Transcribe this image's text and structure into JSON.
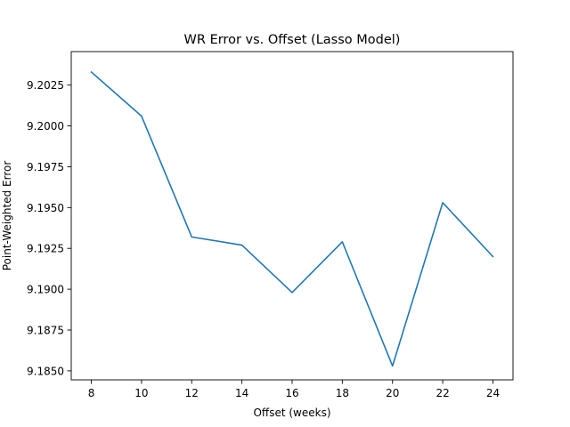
{
  "chart_data": {
    "type": "line",
    "title": "WR Error vs. Offset (Lasso Model)",
    "xlabel": "Offset (weeks)",
    "ylabel": "Point-Weighted Error",
    "xlim": [
      7.2,
      24.8
    ],
    "ylim": [
      9.18445,
      9.20455
    ],
    "x_ticks": [
      8,
      10,
      12,
      14,
      16,
      18,
      20,
      22,
      24
    ],
    "x_tick_labels": [
      "8",
      "10",
      "12",
      "14",
      "16",
      "18",
      "20",
      "22",
      "24"
    ],
    "y_ticks": [
      9.185,
      9.1875,
      9.19,
      9.1925,
      9.195,
      9.1975,
      9.2,
      9.2025
    ],
    "y_tick_labels": [
      "9.1850",
      "9.1875",
      "9.1900",
      "9.1925",
      "9.1950",
      "9.1975",
      "9.2000",
      "9.2025"
    ],
    "grid": false,
    "series": [
      {
        "color": "#1f77b4",
        "x": [
          8,
          10,
          12,
          14,
          16,
          18,
          20,
          22,
          24
        ],
        "y": [
          9.2033,
          9.2006,
          9.1932,
          9.1927,
          9.1898,
          9.1929,
          9.1853,
          9.1953,
          9.192
        ]
      }
    ]
  }
}
